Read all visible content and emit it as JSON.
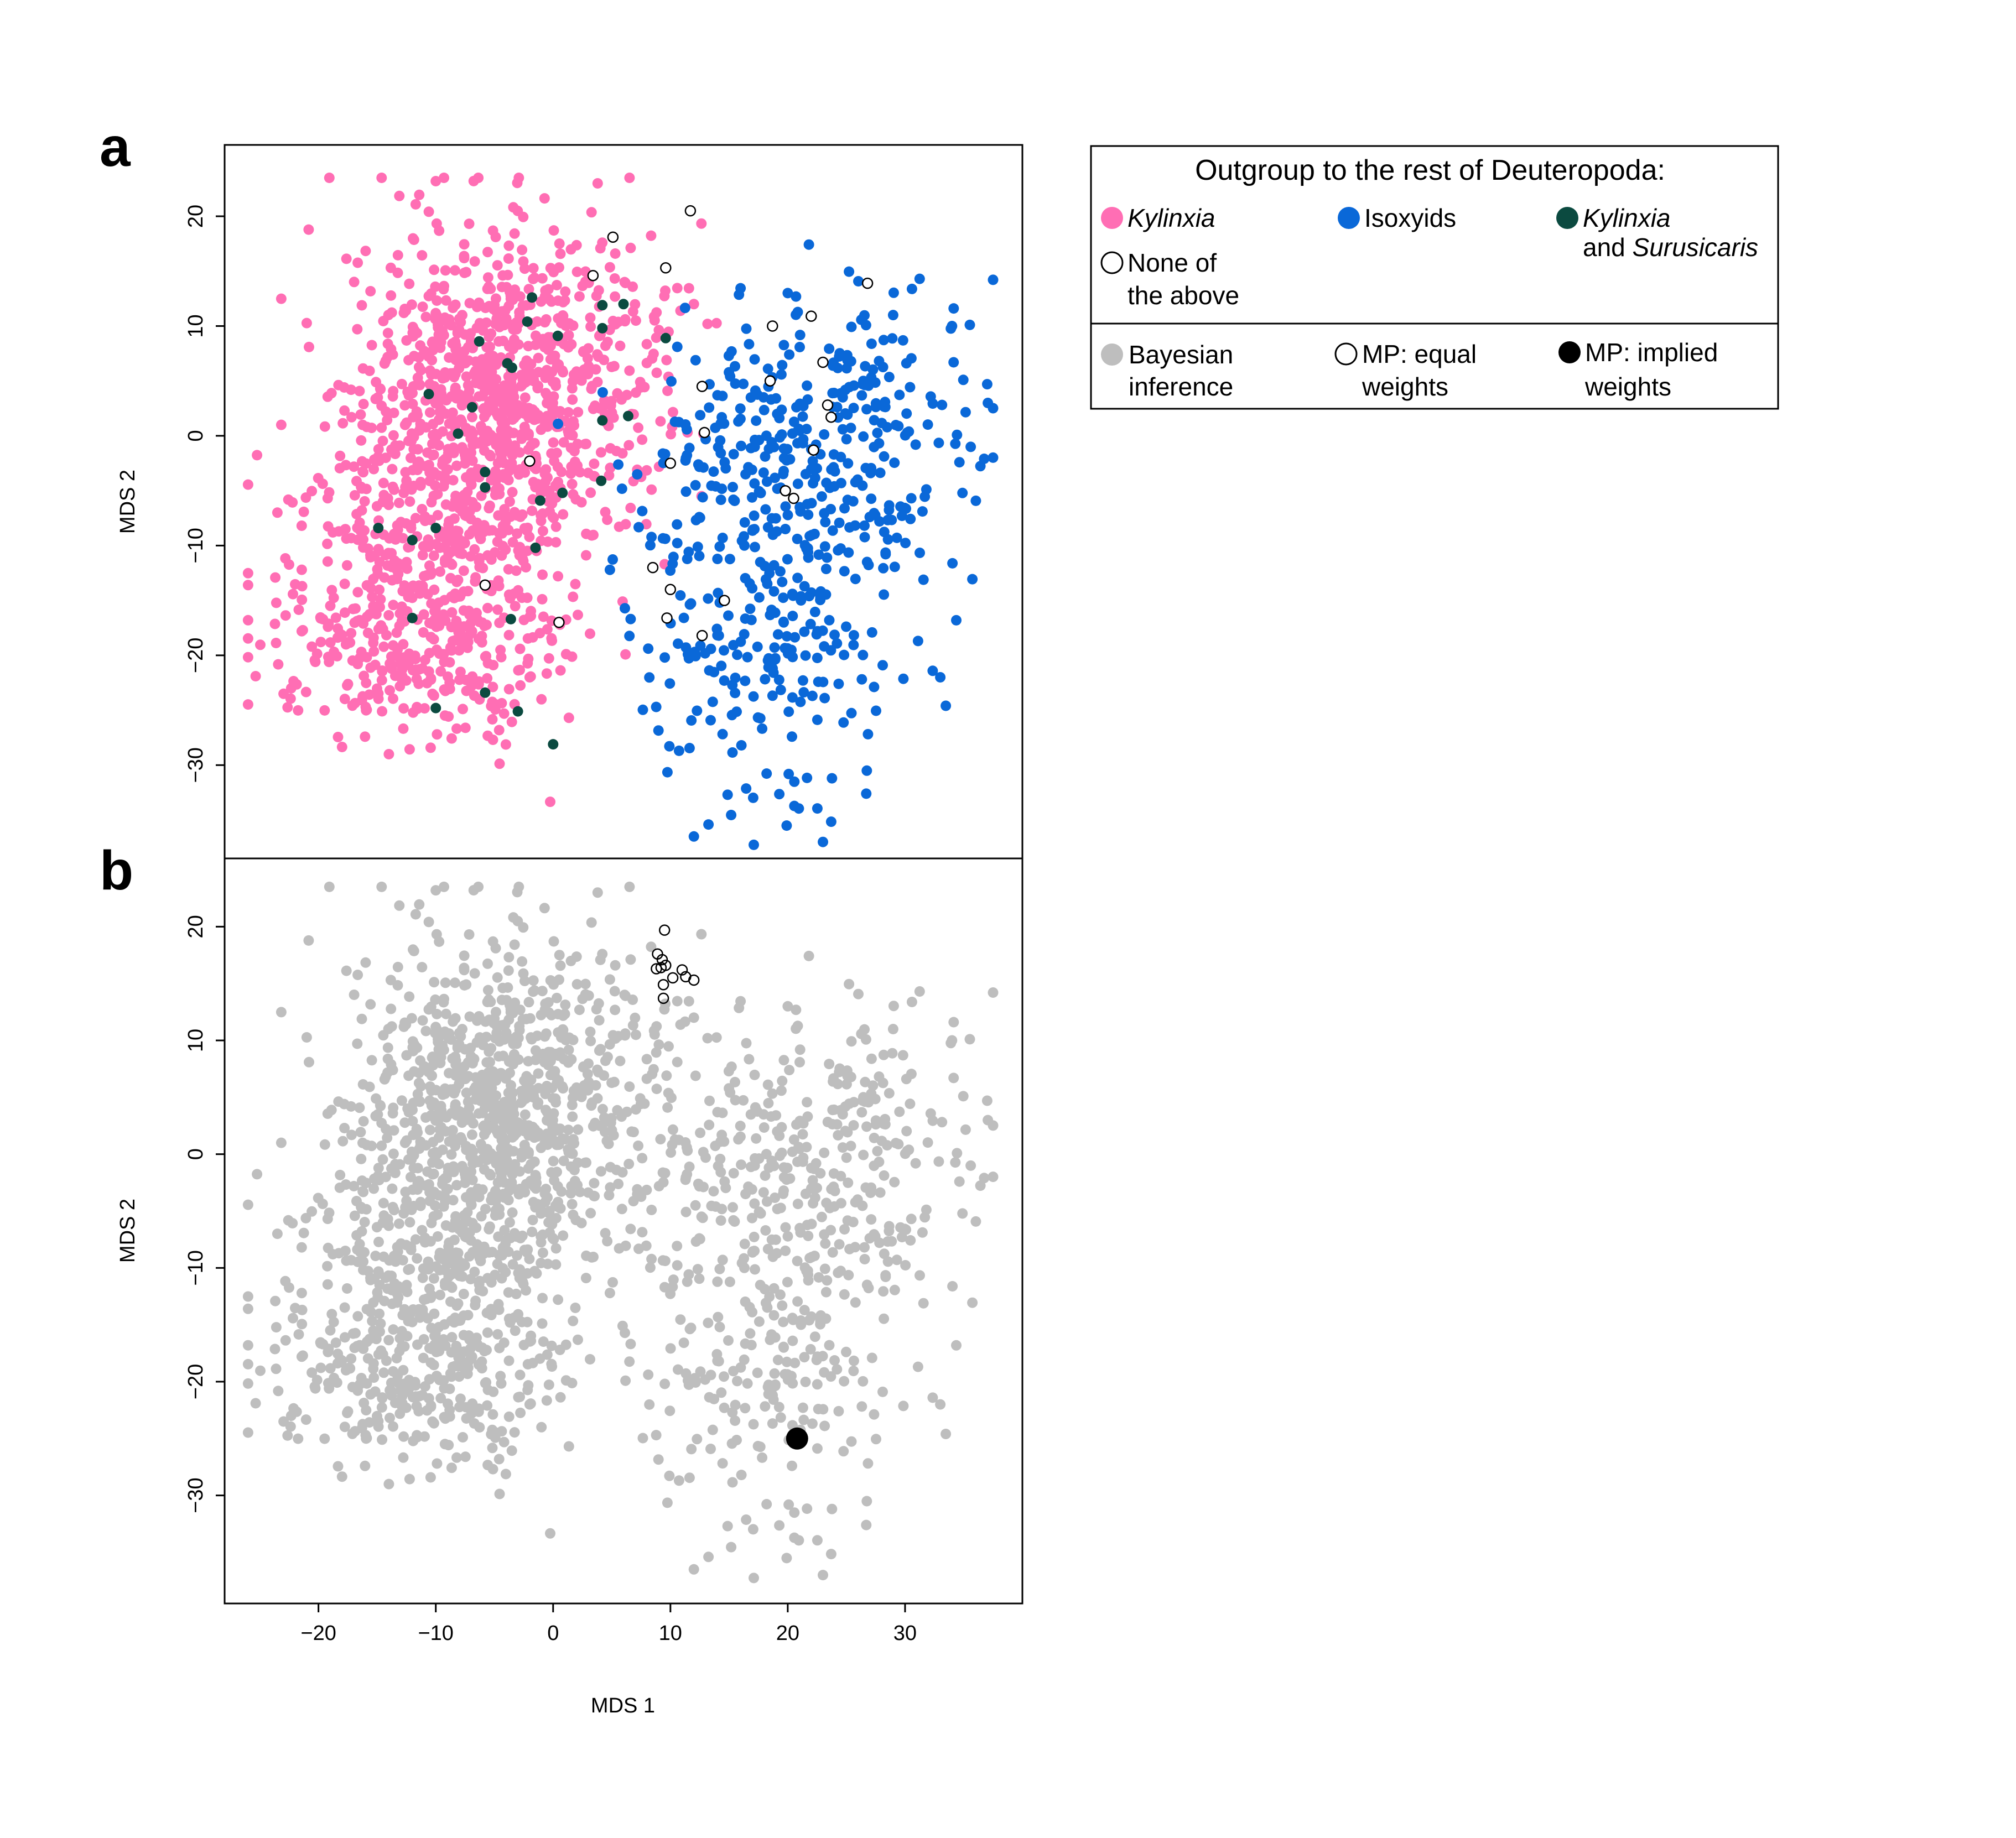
{
  "chart_data": [
    {
      "panel": "a",
      "type": "scatter",
      "title": "",
      "xlabel": "",
      "ylabel": "MDS 2",
      "xlim": [
        -28,
        40
      ],
      "ylim": [
        -38.5,
        26.5
      ],
      "xticks": [],
      "yticks": [
        -30,
        -20,
        -10,
        0,
        10,
        20
      ],
      "tick_labels": {
        "y": [
          "−30",
          "−20",
          "−10",
          "0",
          "10",
          "20"
        ]
      },
      "series": [
        {
          "name": "Kylinxia",
          "color": "#ff6eb4",
          "style": "filled",
          "count": 1500,
          "clusters": [
            {
              "cx": -5,
              "cy": 4,
              "sx": 6,
              "sy": 7,
              "n": 760
            },
            {
              "cx": -10,
              "cy": -10,
              "sx": 6,
              "sy": 6.5,
              "n": 420
            },
            {
              "cx": -12,
              "cy": -20,
              "sx": 6,
              "sy": 4,
              "n": 220
            },
            {
              "cx": 3,
              "cy": 8,
              "sx": 5,
              "sy": 6,
              "n": 100
            }
          ],
          "points": [
            [
              -26,
              -16.8
            ],
            [
              -23.5,
              -7
            ],
            [
              -10,
              23.2
            ],
            [
              3.8,
              23
            ],
            [
              -14,
              -29
            ],
            [
              12,
              12
            ],
            [
              -2,
              -22
            ]
          ]
        },
        {
          "name": "Isoxyids",
          "color": "#0a68d8",
          "style": "filled",
          "count": 560,
          "clusters": [
            {
              "cx": 20,
              "cy": -3,
              "sx": 7,
              "sy": 8,
              "n": 330
            },
            {
              "cx": 18,
              "cy": -20,
              "sx": 5,
              "sy": 7,
              "n": 160
            },
            {
              "cx": 28,
              "cy": 2,
              "sx": 4,
              "sy": 6,
              "n": 70
            }
          ],
          "points": [
            [
              37,
              4.7
            ],
            [
              34,
              10
            ],
            [
              12,
              -36.5
            ],
            [
              23,
              -37
            ],
            [
              33,
              -22
            ],
            [
              20,
              13
            ]
          ]
        },
        {
          "name": "Kylinxia and Surusicaris",
          "color": "#0b4a40",
          "style": "filled",
          "points": [
            [
              -1.8,
              12.6
            ],
            [
              -2.2,
              10.4
            ],
            [
              -6.3,
              8.6
            ],
            [
              -3.9,
              6.6
            ],
            [
              -3.5,
              6.2
            ],
            [
              0.4,
              9.1
            ],
            [
              4.2,
              11.9
            ],
            [
              6,
              12
            ],
            [
              4.2,
              9.8
            ],
            [
              9.6,
              8.9
            ],
            [
              -10.6,
              3.8
            ],
            [
              -6.9,
              2.6
            ],
            [
              -8.1,
              0.2
            ],
            [
              4.2,
              1.4
            ],
            [
              6.4,
              1.8
            ],
            [
              -5.8,
              -3.3
            ],
            [
              -5.8,
              -4.7
            ],
            [
              -1.1,
              -5.9
            ],
            [
              0.8,
              -5.2
            ],
            [
              4.1,
              -4.1
            ],
            [
              -14.9,
              -8.4
            ],
            [
              -10,
              -8.4
            ],
            [
              -12,
              -9.5
            ],
            [
              -1.5,
              -10.2
            ],
            [
              -12,
              -16.6
            ],
            [
              -3.6,
              -16.7
            ],
            [
              -10,
              -24.8
            ],
            [
              -5.8,
              -23.4
            ],
            [
              -3,
              -25.1
            ],
            [
              0,
              -28.1
            ]
          ]
        },
        {
          "name": "None of the above",
          "color": "#000000",
          "style": "open",
          "points": [
            [
              11.7,
              20.5
            ],
            [
              5.1,
              18.1
            ],
            [
              3.4,
              14.6
            ],
            [
              9.6,
              15.3
            ],
            [
              26.8,
              13.9
            ],
            [
              18.7,
              10
            ],
            [
              22,
              10.9
            ],
            [
              23,
              6.7
            ],
            [
              18.5,
              5
            ],
            [
              12.7,
              4.5
            ],
            [
              23.4,
              2.8
            ],
            [
              23.7,
              1.7
            ],
            [
              12.9,
              0.3
            ],
            [
              22.2,
              -1.3
            ],
            [
              10,
              -2.5
            ],
            [
              19.8,
              -5
            ],
            [
              20.5,
              -5.7
            ],
            [
              -2,
              -2.3
            ],
            [
              8.5,
              -12
            ],
            [
              10,
              -14
            ],
            [
              9.7,
              -16.6
            ],
            [
              14.6,
              -15
            ],
            [
              12.7,
              -18.2
            ],
            [
              -5.8,
              -13.6
            ],
            [
              0.5,
              -17
            ]
          ]
        }
      ],
      "legend": {
        "title": "Outgroup to the rest of Deuteropoda:",
        "entries": [
          {
            "style": "filled",
            "color": "#ff6eb4",
            "text_parts": [
              {
                "text": "Kylinxia",
                "italic": true
              }
            ]
          },
          {
            "style": "filled",
            "color": "#0a68d8",
            "text_parts": [
              {
                "text": "Isoxyids",
                "italic": false
              }
            ]
          },
          {
            "style": "filled",
            "color": "#0b4a40",
            "lines": [
              [
                {
                  "text": "Kylinxia",
                  "italic": true
                }
              ],
              [
                {
                  "text": "and ",
                  "italic": false
                },
                {
                  "text": "Surusicaris",
                  "italic": true
                }
              ]
            ]
          },
          {
            "style": "open",
            "color": "#000000",
            "lines": [
              [
                {
                  "text": "None of",
                  "italic": false
                }
              ],
              [
                {
                  "text": "the above",
                  "italic": false
                }
              ]
            ]
          }
        ],
        "placement": "top-right, outside plot"
      }
    },
    {
      "panel": "b",
      "type": "scatter",
      "title": "",
      "xlabel": "MDS 1",
      "ylabel": "MDS 2",
      "xlim": [
        -28,
        40
      ],
      "ylim": [
        -39.5,
        26
      ],
      "xticks": [
        -20,
        -10,
        0,
        10,
        20,
        30
      ],
      "yticks": [
        -30,
        -20,
        -10,
        0,
        10,
        20
      ],
      "tick_labels": {
        "x": [
          "−20",
          "−10",
          "0",
          "10",
          "20",
          "30"
        ],
        "y": [
          "−30",
          "−20",
          "−10",
          "0",
          "10",
          "20"
        ]
      },
      "series": [
        {
          "name": "Bayesian inference",
          "color": "#bebebe",
          "style": "filled",
          "count": 2060,
          "mirrors_panel_a": true
        },
        {
          "name": "MP: equal weights",
          "color": "#000000",
          "style": "open",
          "points": [
            [
              9.5,
              19.7
            ],
            [
              8.9,
              17.6
            ],
            [
              9.3,
              17.1
            ],
            [
              9.6,
              16.6
            ],
            [
              8.8,
              16.3
            ],
            [
              9.2,
              16.4
            ],
            [
              10.2,
              15.5
            ],
            [
              11,
              16.2
            ],
            [
              11.3,
              15.6
            ],
            [
              12,
              15.3
            ],
            [
              9.4,
              14.9
            ],
            [
              9.4,
              13.7
            ]
          ]
        },
        {
          "name": "MP: implied weights",
          "color": "#000000",
          "style": "filled-large",
          "points": [
            [
              20.8,
              -25
            ]
          ]
        }
      ],
      "legend": {
        "entries": [
          {
            "style": "filled",
            "color": "#bebebe",
            "lines": [
              [
                {
                  "text": "Bayesian",
                  "italic": false
                }
              ],
              [
                {
                  "text": "inference",
                  "italic": false
                }
              ]
            ]
          },
          {
            "style": "open",
            "color": "#000000",
            "lines": [
              [
                {
                  "text": "MP: equal",
                  "italic": false
                }
              ],
              [
                {
                  "text": "weights",
                  "italic": false
                }
              ]
            ]
          },
          {
            "style": "filled",
            "color": "#000000",
            "lines": [
              [
                {
                  "text": "MP: implied",
                  "italic": false
                }
              ],
              [
                {
                  "text": "weights",
                  "italic": false
                }
              ]
            ]
          }
        ],
        "placement": "top-right, outside plot"
      }
    }
  ],
  "labels": {
    "panel_a": "a",
    "panel_b": "b"
  }
}
